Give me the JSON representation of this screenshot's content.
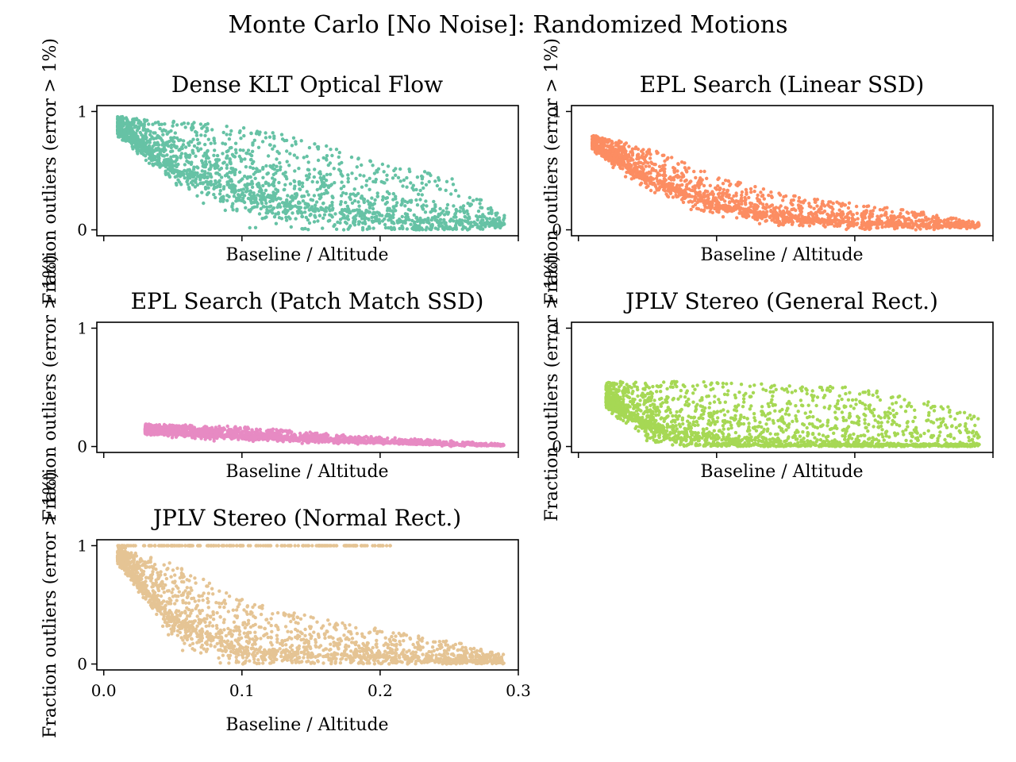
{
  "figure": {
    "suptitle": "Monte Carlo [No Noise]: Randomized Motions"
  },
  "chart_data": [
    {
      "type": "scatter",
      "title": "Dense KLT Optical Flow",
      "xlabel": "Baseline / Altitude",
      "ylabel": "Fraction outliers (error > 1%)",
      "color": "#66c2a5",
      "xlim": [
        -0.005,
        0.3
      ],
      "ylim": [
        -0.05,
        1.05
      ],
      "yticks": [
        "0",
        "1"
      ],
      "xticks": [],
      "profile": {
        "x_range": [
          0.01,
          0.29
        ],
        "points": 2000,
        "upper": [
          [
            0.01,
            0.96
          ],
          [
            0.05,
            0.92
          ],
          [
            0.1,
            0.88
          ],
          [
            0.15,
            0.75
          ],
          [
            0.2,
            0.58
          ],
          [
            0.25,
            0.45
          ],
          [
            0.29,
            0.12
          ]
        ],
        "center": [
          [
            0.01,
            0.85
          ],
          [
            0.05,
            0.55
          ],
          [
            0.1,
            0.35
          ],
          [
            0.15,
            0.22
          ],
          [
            0.2,
            0.14
          ],
          [
            0.25,
            0.08
          ],
          [
            0.29,
            0.05
          ]
        ],
        "spread": 0.25
      }
    },
    {
      "type": "scatter",
      "title": "EPL Search (Linear SSD)",
      "xlabel": "Baseline / Altitude",
      "ylabel": "Fraction outliers (error > 1%)",
      "color": "#fc8d62",
      "xlim": [
        -0.005,
        0.3
      ],
      "ylim": [
        -0.05,
        1.05
      ],
      "yticks": [
        "0",
        "1"
      ],
      "xticks": [],
      "profile": {
        "x_range": [
          0.01,
          0.29
        ],
        "points": 2000,
        "upper": [
          [
            0.01,
            0.8
          ],
          [
            0.05,
            0.7
          ],
          [
            0.1,
            0.45
          ],
          [
            0.15,
            0.3
          ],
          [
            0.2,
            0.22
          ],
          [
            0.25,
            0.15
          ],
          [
            0.29,
            0.06
          ]
        ],
        "center": [
          [
            0.01,
            0.72
          ],
          [
            0.05,
            0.45
          ],
          [
            0.1,
            0.22
          ],
          [
            0.15,
            0.12
          ],
          [
            0.2,
            0.07
          ],
          [
            0.25,
            0.05
          ],
          [
            0.29,
            0.03
          ]
        ],
        "spread": 0.09
      }
    },
    {
      "type": "scatter",
      "title": "EPL Search (Patch Match SSD)",
      "xlabel": "Baseline / Altitude",
      "ylabel": "Fraction outliers (error > 1%)",
      "color": "#e78ac3",
      "xlim": [
        -0.005,
        0.3
      ],
      "ylim": [
        -0.05,
        1.05
      ],
      "yticks": [
        "0",
        "1"
      ],
      "xticks": [],
      "profile": {
        "x_range": [
          0.03,
          0.29
        ],
        "points": 2000,
        "upper": [
          [
            0.03,
            0.19
          ],
          [
            0.1,
            0.17
          ],
          [
            0.15,
            0.12
          ],
          [
            0.2,
            0.08
          ],
          [
            0.25,
            0.05
          ],
          [
            0.29,
            0.02
          ]
        ],
        "center": [
          [
            0.03,
            0.13
          ],
          [
            0.1,
            0.09
          ],
          [
            0.15,
            0.06
          ],
          [
            0.2,
            0.04
          ],
          [
            0.25,
            0.02
          ],
          [
            0.29,
            0.01
          ]
        ],
        "spread": 0.05
      }
    },
    {
      "type": "scatter",
      "title": "JPLV Stereo (General Rect.)",
      "xlabel": "Baseline / Altitude",
      "ylabel": "Fraction outliers (error > 1%)",
      "color": "#a6d854",
      "xlim": [
        -0.005,
        0.3
      ],
      "ylim": [
        -0.05,
        1.05
      ],
      "yticks": [
        "0",
        "1"
      ],
      "xticks": [],
      "profile": {
        "x_range": [
          0.02,
          0.29
        ],
        "points": 2000,
        "upper": [
          [
            0.02,
            0.55
          ],
          [
            0.1,
            0.55
          ],
          [
            0.15,
            0.52
          ],
          [
            0.2,
            0.5
          ],
          [
            0.25,
            0.4
          ],
          [
            0.29,
            0.25
          ]
        ],
        "center": [
          [
            0.02,
            0.4
          ],
          [
            0.05,
            0.2
          ],
          [
            0.1,
            0.1
          ],
          [
            0.15,
            0.06
          ],
          [
            0.2,
            0.04
          ],
          [
            0.25,
            0.02
          ],
          [
            0.29,
            0.02
          ]
        ],
        "spread": 0.15
      }
    },
    {
      "type": "scatter",
      "title": "JPLV Stereo (Normal Rect.)",
      "xlabel": "Baseline / Altitude",
      "ylabel": "Fraction outliers (error > 1%)",
      "color": "#e5c494",
      "xlim": [
        -0.005,
        0.3
      ],
      "ylim": [
        -0.05,
        1.05
      ],
      "yticks": [
        "0",
        "1"
      ],
      "xticks": [
        "0.0",
        "0.1",
        "0.2",
        "0.3"
      ],
      "profile": {
        "x_range": [
          0.01,
          0.29
        ],
        "points": 2000,
        "upper": [
          [
            0.01,
            1.0
          ],
          [
            0.05,
            0.85
          ],
          [
            0.1,
            0.55
          ],
          [
            0.15,
            0.4
          ],
          [
            0.2,
            0.3
          ],
          [
            0.25,
            0.2
          ],
          [
            0.29,
            0.08
          ]
        ],
        "center": [
          [
            0.01,
            0.9
          ],
          [
            0.05,
            0.4
          ],
          [
            0.1,
            0.15
          ],
          [
            0.15,
            0.1
          ],
          [
            0.2,
            0.07
          ],
          [
            0.25,
            0.05
          ],
          [
            0.29,
            0.02
          ]
        ],
        "spread": 0.18,
        "saturated_band": {
          "y": 1.0,
          "x_range": [
            0.01,
            0.21
          ],
          "points": 200
        }
      }
    }
  ]
}
